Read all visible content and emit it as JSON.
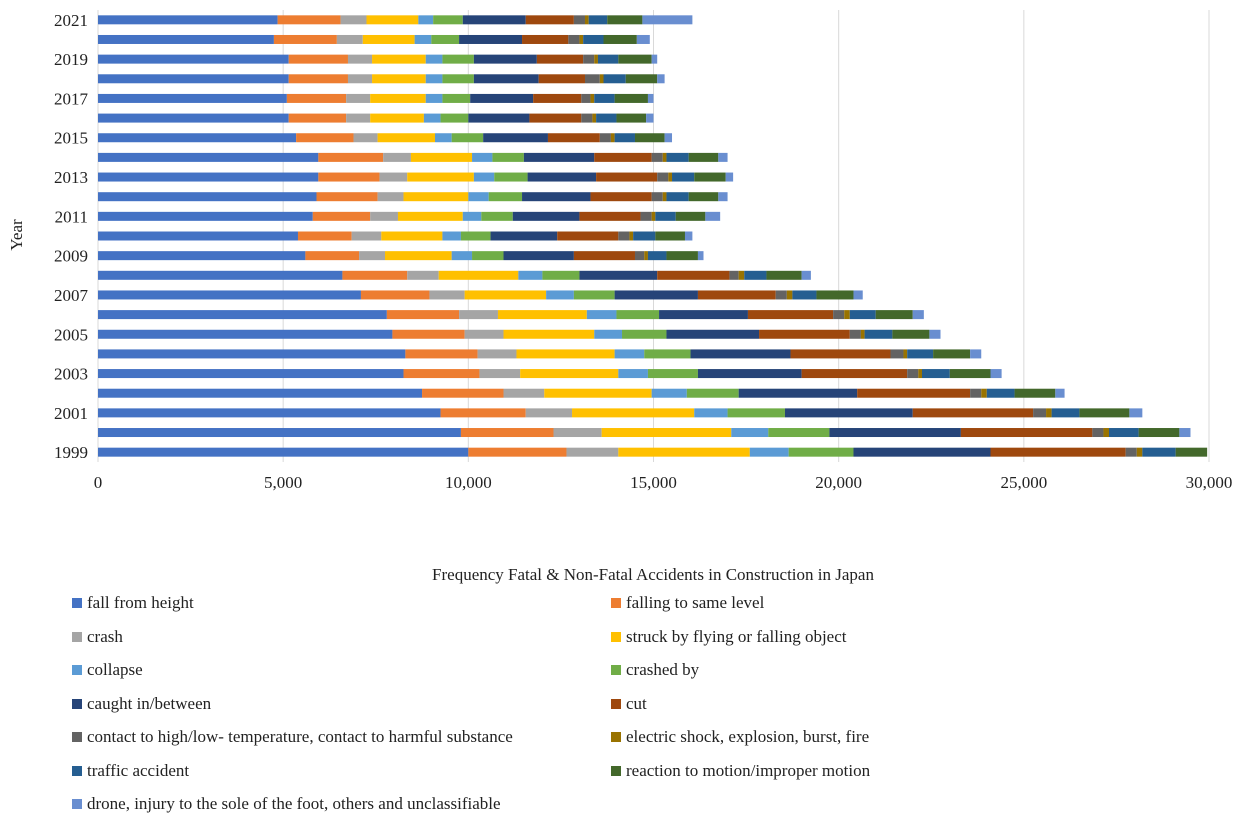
{
  "chart_data": {
    "type": "bar",
    "orientation": "horizontal",
    "stacked": true,
    "xlabel": "Frequency Fatal & Non-Fatal Accidents in Construction in Japan",
    "ylabel": "Year",
    "xlim": [
      0,
      30000
    ],
    "xticks": [
      "0",
      "5,000",
      "10,000",
      "15,000",
      "20,000",
      "25,000",
      "30,000"
    ],
    "xtick_values": [
      0,
      5000,
      10000,
      15000,
      20000,
      25000,
      30000
    ],
    "grid": "vertical",
    "legend_position": "bottom",
    "categories": [
      "1999",
      "2000",
      "2001",
      "2002",
      "2003",
      "2004",
      "2005",
      "2006",
      "2007",
      "2008",
      "2009",
      "2010",
      "2011",
      "2012",
      "2013",
      "2014",
      "2015",
      "2016",
      "2017",
      "2018",
      "2019",
      "2020",
      "2021"
    ],
    "category_labels_shown": [
      "1999",
      "2001",
      "2003",
      "2005",
      "2007",
      "2009",
      "2011",
      "2013",
      "2015",
      "2017",
      "2019",
      "2021"
    ],
    "series": [
      {
        "name": "fall from height",
        "color": "#4472C4",
        "values": [
          10000,
          9800,
          9250,
          8750,
          8250,
          8300,
          7950,
          7800,
          7100,
          6600,
          5600,
          5400,
          5800,
          5900,
          5950,
          5950,
          5350,
          5150,
          5100,
          5150,
          5150,
          4750,
          4850
        ]
      },
      {
        "name": "falling to same level",
        "color": "#ED7D31",
        "values": [
          2650,
          2500,
          2300,
          2200,
          2050,
          1950,
          1950,
          1950,
          1850,
          1750,
          1450,
          1450,
          1550,
          1650,
          1650,
          1750,
          1550,
          1550,
          1600,
          1600,
          1600,
          1700,
          1700
        ]
      },
      {
        "name": "crash",
        "color": "#A5A5A5",
        "values": [
          1400,
          1300,
          1250,
          1100,
          1100,
          1050,
          1050,
          1050,
          950,
          850,
          700,
          800,
          750,
          700,
          750,
          750,
          650,
          650,
          650,
          650,
          650,
          700,
          700
        ]
      },
      {
        "name": "struck by flying or falling object",
        "color": "#FFC000",
        "values": [
          3550,
          3500,
          3300,
          2900,
          2650,
          2650,
          2450,
          2400,
          2200,
          2150,
          1800,
          1650,
          1750,
          1750,
          1800,
          1650,
          1550,
          1450,
          1500,
          1450,
          1450,
          1400,
          1400
        ]
      },
      {
        "name": "collapse",
        "color": "#5B9BD5",
        "values": [
          1050,
          1000,
          900,
          950,
          800,
          800,
          750,
          800,
          750,
          650,
          550,
          500,
          500,
          550,
          550,
          550,
          450,
          450,
          450,
          450,
          450,
          450,
          400
        ]
      },
      {
        "name": "crashed by",
        "color": "#70AD47",
        "values": [
          1750,
          1650,
          1550,
          1400,
          1350,
          1250,
          1200,
          1150,
          1100,
          1000,
          850,
          800,
          850,
          900,
          900,
          850,
          850,
          750,
          750,
          850,
          850,
          750,
          800
        ]
      },
      {
        "name": "caught in/between",
        "color": "#264478",
        "values": [
          3700,
          3550,
          3450,
          3200,
          2800,
          2700,
          2500,
          2400,
          2250,
          2100,
          1900,
          1800,
          1800,
          1850,
          1850,
          1900,
          1750,
          1650,
          1700,
          1750,
          1700,
          1700,
          1700
        ]
      },
      {
        "name": "cut",
        "color": "#9E480E",
        "values": [
          3650,
          3550,
          3250,
          3050,
          2850,
          2700,
          2450,
          2300,
          2100,
          1950,
          1650,
          1650,
          1650,
          1650,
          1650,
          1550,
          1400,
          1400,
          1300,
          1250,
          1250,
          1250,
          1300
        ]
      },
      {
        "name": "contact to high/low- temperature, contact to harmful substance",
        "color": "#636363",
        "values": [
          300,
          300,
          350,
          300,
          300,
          350,
          300,
          300,
          300,
          250,
          250,
          300,
          300,
          300,
          300,
          300,
          300,
          300,
          250,
          400,
          300,
          300,
          300
        ]
      },
      {
        "name": "electric shock, explosion, burst, fire",
        "color": "#997300",
        "values": [
          150,
          150,
          150,
          150,
          100,
          100,
          100,
          150,
          150,
          150,
          100,
          100,
          100,
          100,
          100,
          100,
          100,
          100,
          100,
          100,
          100,
          100,
          100
        ]
      },
      {
        "name": "traffic accident",
        "color": "#255E91",
        "values": [
          900,
          800,
          750,
          750,
          750,
          700,
          750,
          700,
          650,
          600,
          500,
          600,
          550,
          600,
          600,
          600,
          550,
          550,
          550,
          600,
          550,
          550,
          500
        ]
      },
      {
        "name": "reaction to motion/improper motion",
        "color": "#43682B",
        "values": [
          850,
          1100,
          1350,
          1100,
          1100,
          1000,
          1000,
          1000,
          1000,
          950,
          850,
          800,
          800,
          800,
          850,
          800,
          800,
          800,
          900,
          850,
          900,
          900,
          950
        ]
      },
      {
        "name": "drone, injury to the sole of the foot,  others and unclassifiable",
        "color": "#698ED0",
        "values": [
          0,
          300,
          350,
          250,
          300,
          300,
          300,
          300,
          250,
          250,
          150,
          200,
          400,
          250,
          200,
          250,
          200,
          200,
          150,
          200,
          150,
          350,
          1350
        ]
      }
    ]
  }
}
